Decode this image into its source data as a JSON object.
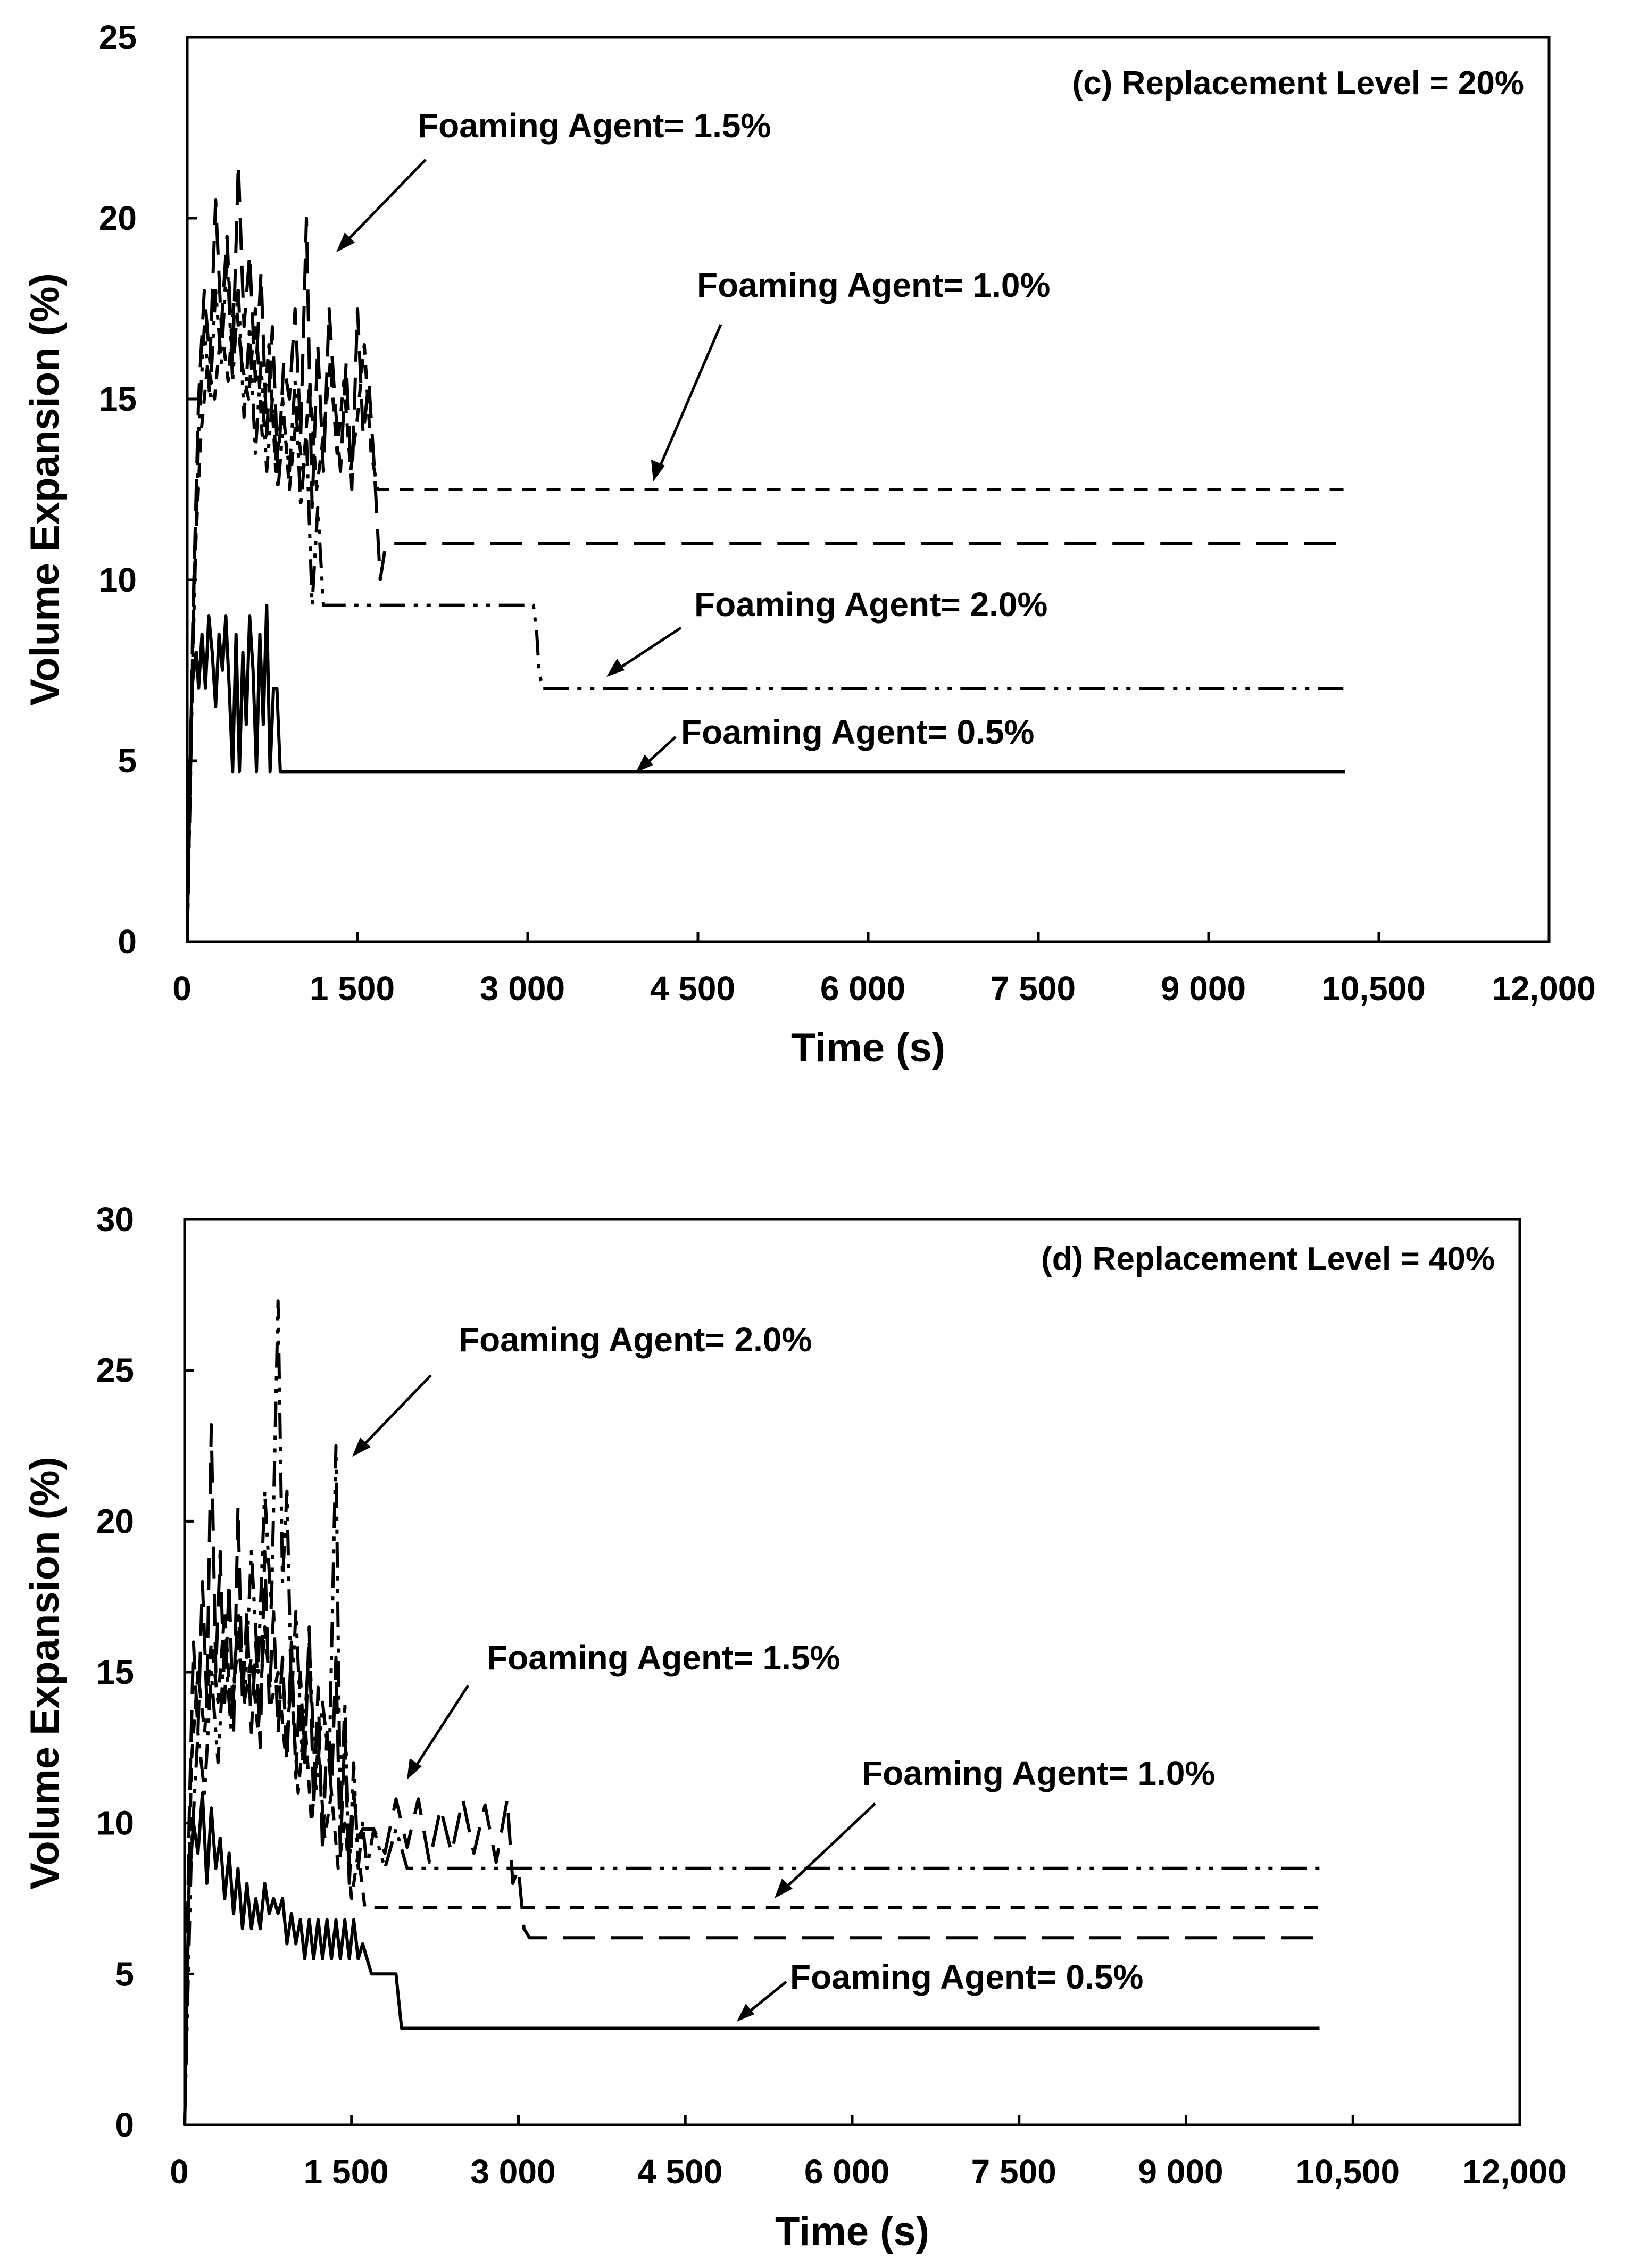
{
  "chart_data": [
    {
      "type": "line",
      "title": "(c) Replacement Level = 20%",
      "xlabel": "Time (s)",
      "ylabel": "Volume Expansion (%)",
      "xlim": [
        0,
        12000
      ],
      "ylim": [
        0,
        25
      ],
      "xtick_labels": [
        "0",
        "1 500",
        "3 000",
        "4 500",
        "6 000",
        "7 500",
        "9 000",
        "10,500",
        "12,000"
      ],
      "ytick_labels": [
        "0",
        "5",
        "10",
        "15",
        "20",
        "25"
      ],
      "series": [
        {
          "name": "Foaming Agent= 0.5%",
          "style": "solid",
          "x": [
            0,
            20,
            40,
            60,
            80,
            100,
            130,
            160,
            190,
            220,
            250,
            280,
            310,
            340,
            370,
            400,
            430,
            460,
            490,
            520,
            550,
            580,
            610,
            640,
            670,
            700,
            730,
            760,
            790,
            820,
            10200
          ],
          "y": [
            0,
            4,
            7,
            7.5,
            8,
            7,
            8.5,
            7,
            9,
            8,
            6.5,
            8.5,
            7.5,
            9,
            7,
            4.7,
            8.5,
            4.7,
            8,
            6,
            9,
            7.5,
            4.7,
            8.5,
            6,
            9.3,
            4.7,
            7,
            7,
            4.7,
            4.7
          ]
        },
        {
          "name": "Foaming Agent= 1.0%",
          "style": "short-dash",
          "x": [
            0,
            60,
            120,
            180,
            240,
            300,
            360,
            420,
            480,
            540,
            600,
            660,
            720,
            780,
            840,
            900,
            960,
            1020,
            1080,
            1140,
            1200,
            1260,
            1320,
            1380,
            1440,
            1500,
            1560,
            1620,
            1680,
            10200
          ],
          "y": [
            0,
            10,
            14,
            16,
            15,
            17,
            15.5,
            18,
            16,
            15,
            17.5,
            14,
            16.5,
            13,
            15,
            12.5,
            14.5,
            13,
            15.5,
            12.5,
            14,
            16,
            13.5,
            15.5,
            13,
            14.5,
            16.5,
            13.5,
            12.5,
            12.5
          ]
        },
        {
          "name": "Foaming Agent= 1.5%",
          "style": "long-dash",
          "x": [
            0,
            50,
            100,
            150,
            200,
            250,
            300,
            350,
            400,
            450,
            500,
            550,
            600,
            650,
            700,
            750,
            800,
            850,
            900,
            950,
            1000,
            1050,
            1100,
            1150,
            1200,
            1250,
            1300,
            1350,
            1400,
            1450,
            1500,
            1550,
            1600,
            1650,
            1700,
            1750,
            10200
          ],
          "y": [
            0,
            9,
            15,
            18,
            16,
            20.5,
            17,
            19.5,
            16,
            21.5,
            17,
            19,
            15.5,
            18.5,
            14,
            17,
            13,
            16,
            15,
            17.5,
            14,
            20,
            12,
            16.5,
            13,
            17.5,
            15,
            13,
            16,
            12.5,
            17.5,
            14,
            15.5,
            13,
            10,
            11,
            11
          ]
        },
        {
          "name": "Foaming Agent= 2.0%",
          "style": "dash-dot-dot",
          "x": [
            0,
            50,
            100,
            150,
            200,
            250,
            300,
            350,
            400,
            450,
            500,
            550,
            600,
            650,
            700,
            750,
            800,
            850,
            900,
            950,
            1000,
            1050,
            1100,
            1150,
            1200,
            3050,
            3080,
            3100,
            3130,
            10200
          ],
          "y": [
            0,
            8,
            14,
            17,
            15,
            18,
            16,
            19,
            15.5,
            18,
            14.5,
            17,
            13.5,
            16,
            13,
            15,
            12.5,
            14.5,
            13,
            15.5,
            12,
            14,
            9.3,
            12,
            9.3,
            9.3,
            8.5,
            7.5,
            7,
            7
          ]
        }
      ],
      "annotations": [
        "Foaming Agent= 1.5%",
        "Foaming Agent= 1.0%",
        "Foaming Agent= 2.0%",
        "Foaming Agent= 0.5%"
      ]
    },
    {
      "type": "line",
      "title": "(d) Replacement Level = 40%",
      "xlabel": "Time (s)",
      "ylabel": "Volume Expansion (%)",
      "xlim": [
        0,
        12000
      ],
      "ylim": [
        0,
        30
      ],
      "xtick_labels": [
        "0",
        "1 500",
        "3 000",
        "4 500",
        "6 000",
        "7 500",
        "9 000",
        "10,500",
        "12,000"
      ],
      "ytick_labels": [
        "0",
        "5",
        "10",
        "15",
        "20",
        "25",
        "30"
      ],
      "series": [
        {
          "name": "Foaming Agent= 0.5%",
          "style": "solid",
          "x": [
            0,
            40,
            80,
            120,
            160,
            200,
            240,
            280,
            320,
            360,
            400,
            440,
            480,
            520,
            560,
            600,
            640,
            680,
            720,
            760,
            800,
            840,
            880,
            920,
            960,
            1000,
            1040,
            1080,
            1120,
            1160,
            1200,
            1240,
            1280,
            1320,
            1360,
            1400,
            1440,
            1480,
            1520,
            1560,
            1600,
            1640,
            1680,
            1700,
            1800,
            1900,
            1950,
            1960,
            10200
          ],
          "y": [
            0,
            8,
            10,
            9,
            11,
            8,
            10.5,
            8.5,
            9.5,
            7.5,
            9,
            7,
            8.5,
            6.5,
            8,
            6.5,
            7.5,
            6.5,
            8,
            7,
            7.5,
            7,
            7.5,
            6,
            7,
            6,
            6.8,
            5.5,
            6.8,
            5.5,
            6.8,
            5.5,
            6.8,
            5.5,
            6.8,
            5.5,
            6.8,
            5.5,
            6.8,
            5.5,
            6,
            5.5,
            5,
            5,
            5,
            5,
            3.2,
            3.2,
            3.2
          ]
        },
        {
          "name": "Foaming Agent= 1.0%",
          "style": "short-dash",
          "x": [
            0,
            60,
            120,
            180,
            240,
            300,
            360,
            420,
            480,
            540,
            600,
            660,
            720,
            780,
            840,
            900,
            960,
            1020,
            1080,
            1140,
            1200,
            1260,
            1320,
            1380,
            1440,
            1500,
            1560,
            1620,
            1640,
            10200
          ],
          "y": [
            0,
            12,
            15,
            13,
            16,
            14,
            17,
            13.5,
            16,
            14,
            15.5,
            13,
            16.5,
            14,
            15,
            12.5,
            14.5,
            11,
            13.5,
            10,
            12.5,
            9.5,
            11,
            8.5,
            10,
            7.5,
            9,
            7.2,
            7.2,
            7.2
          ]
        },
        {
          "name": "Foaming Agent= 1.5%",
          "style": "long-dash",
          "x": [
            0,
            40,
            80,
            120,
            160,
            200,
            240,
            280,
            320,
            360,
            400,
            440,
            480,
            520,
            560,
            600,
            640,
            680,
            720,
            760,
            800,
            840,
            880,
            920,
            960,
            1000,
            1040,
            1080,
            1120,
            1160,
            1200,
            1240,
            1280,
            1320,
            1360,
            1400,
            1440,
            1480,
            1520,
            1560,
            1600,
            1700,
            1800,
            1900,
            2000,
            2100,
            2200,
            2300,
            2400,
            2500,
            2600,
            2700,
            2800,
            2900,
            2950,
            3000,
            3050,
            3100,
            10200
          ],
          "y": [
            0,
            10,
            16,
            13,
            18,
            14,
            23.2,
            15,
            19,
            14,
            18,
            13,
            20.5,
            14,
            17,
            13,
            16,
            12.5,
            19,
            14,
            17,
            13,
            15.5,
            12,
            16,
            11.5,
            15,
            12,
            16.5,
            10.5,
            14.5,
            9,
            13,
            11,
            15.5,
            9,
            13,
            8,
            11,
            9.5,
            9.8,
            9.8,
            9,
            10.8,
            9.2,
            10.8,
            8.7,
            10.5,
            9,
            10.8,
            9,
            10.6,
            8.7,
            10.8,
            8,
            8.5,
            6.5,
            6.2,
            6.2
          ]
        },
        {
          "name": "Foaming Agent= 2.0%",
          "style": "dash-dot-dot",
          "x": [
            0,
            60,
            120,
            180,
            240,
            300,
            360,
            420,
            480,
            540,
            600,
            660,
            720,
            780,
            840,
            880,
            920,
            960,
            1000,
            1060,
            1120,
            1180,
            1240,
            1300,
            1360,
            1400,
            1440,
            1480,
            1520,
            1560,
            1600,
            1640,
            1700,
            1800,
            1900,
            2000,
            10200
          ],
          "y": [
            0,
            9,
            13,
            11,
            15,
            12,
            16,
            13,
            17,
            14,
            19,
            15,
            21,
            17,
            27.3,
            18,
            21,
            14,
            17,
            12,
            16,
            11,
            14,
            12,
            22.5,
            10,
            14,
            8.5,
            12,
            8.5,
            10,
            8.5,
            9.8,
            8.5,
            9.8,
            8.5,
            8.5
          ]
        }
      ],
      "annotations": [
        "Foaming Agent= 2.0%",
        "Foaming Agent= 1.5%",
        "Foaming Agent= 1.0%",
        "Foaming Agent= 0.5%"
      ]
    }
  ]
}
